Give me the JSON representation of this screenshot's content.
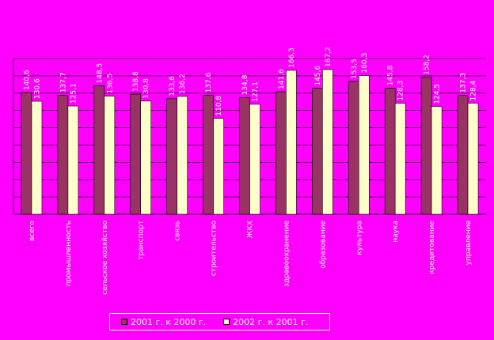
{
  "chart_data": {
    "type": "bar",
    "categories": [
      "всего",
      "промышленность",
      "сельское хозяйство",
      "транспорт",
      "связь",
      "строительство",
      "ЖКХ",
      "здравоохранение",
      "образование",
      "культура",
      "наука",
      "кредитование",
      "управление"
    ],
    "series": [
      {
        "name": "2001 г. к 2000 г.",
        "values": [
          140.6,
          137.7,
          148.5,
          138.8,
          133.6,
          137.6,
          134.8,
          141.6,
          145.6,
          153.5,
          145.8,
          158.2,
          137.3
        ],
        "labels": [
          "140,6",
          "137,7",
          "148,5",
          "138,8",
          "133,6",
          "137,6",
          "134,8",
          "141,6",
          "145,6",
          "153,5",
          "145,8",
          "158,2",
          "137,3"
        ],
        "color": "#993366"
      },
      {
        "name": "2002 г. к 2001 г.",
        "values": [
          130.6,
          125.1,
          136.5,
          130.8,
          136.2,
          110.8,
          127.1,
          166.3,
          167.2,
          160.3,
          128.3,
          124.5,
          128.4
        ],
        "labels": [
          "130,6",
          "125,1",
          "136,5",
          "130,8",
          "136,2",
          "110,8",
          "127,1",
          "166,3",
          "167,2",
          "160,3",
          "128,3",
          "124,5",
          "128,4"
        ],
        "color": "#ffffcc"
      }
    ],
    "ylim": [
      0,
      180
    ],
    "grid": true,
    "legend_position": "bottom"
  }
}
